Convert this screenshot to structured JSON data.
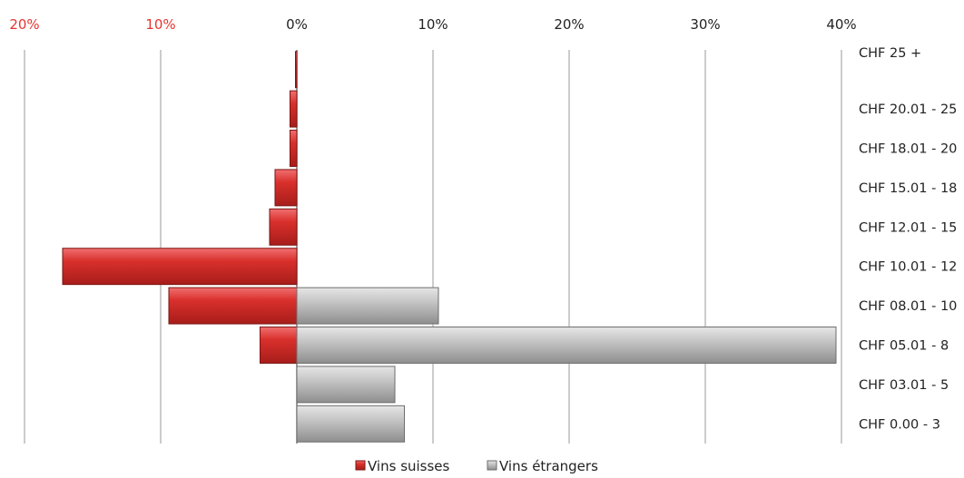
{
  "chart_data": {
    "type": "bar",
    "orientation": "horizontal",
    "layout": "diverging",
    "categories": [
      "CHF 25 +",
      "CHF 20.01 - 25",
      "CHF 18.01 - 20",
      "CHF 15.01 - 18",
      "CHF 12.01 - 15",
      "CHF 10.01 - 12",
      "CHF 08.01 - 10",
      "CHF 05.01 - 8",
      "CHF 03.01 - 5",
      "CHF 0.00 - 3"
    ],
    "series": [
      {
        "name": "Vins suisses",
        "direction": "left",
        "color": "#d9302c",
        "values": [
          0.1,
          0.5,
          0.5,
          1.6,
          2.0,
          17.2,
          9.4,
          2.7,
          0,
          0
        ]
      },
      {
        "name": "Vins étrangers",
        "direction": "right",
        "color": "#bdbdbd",
        "values": [
          0,
          0,
          0,
          0,
          0,
          0,
          10.4,
          39.6,
          7.2,
          7.9
        ]
      }
    ],
    "x_ticks_left": [
      {
        "value": 20,
        "label": "20%"
      },
      {
        "value": 10,
        "label": "10%"
      }
    ],
    "x_ticks_right": [
      {
        "value": 0,
        "label": "0%"
      },
      {
        "value": 10,
        "label": "10%"
      },
      {
        "value": 20,
        "label": "20%"
      },
      {
        "value": 30,
        "label": "30%"
      },
      {
        "value": 40,
        "label": "40%"
      }
    ],
    "left_tick_color": "#e8332f",
    "right_tick_color": "#222222",
    "xlim": [
      -20,
      40
    ],
    "grid": "vertical",
    "legend_position": "bottom"
  }
}
